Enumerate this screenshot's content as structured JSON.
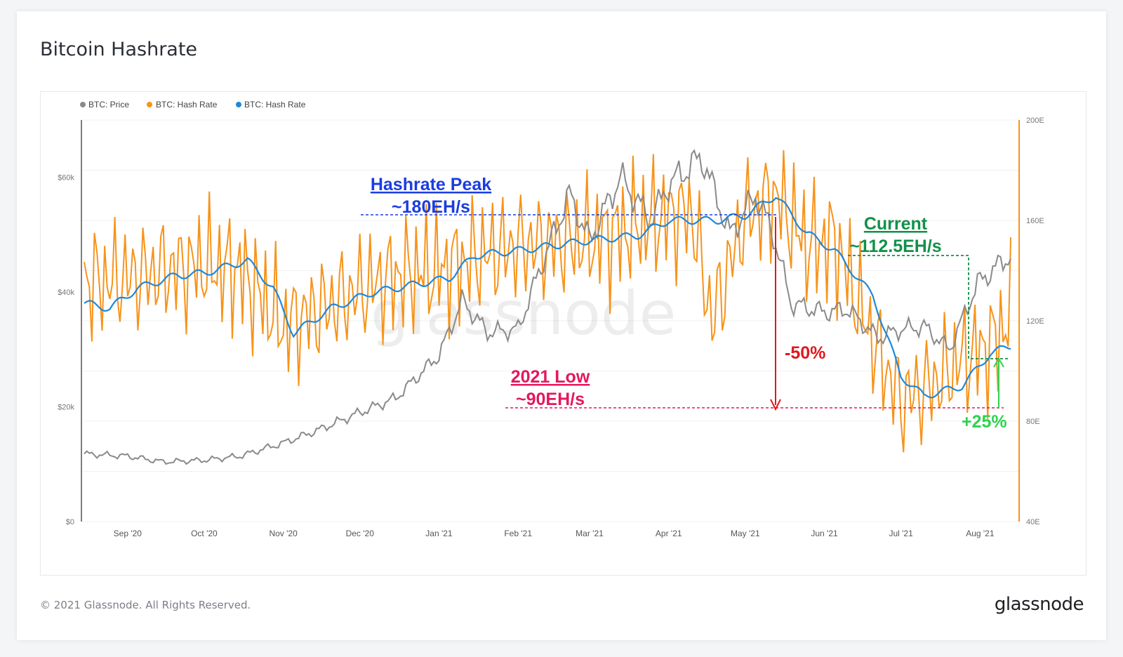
{
  "title": "Bitcoin Hashrate",
  "footer": "© 2021 Glassnode. All Rights Reserved.",
  "brand": "glassnode",
  "watermark": "glassnode",
  "colors": {
    "price": "#8a8a8a",
    "hashrate_raw": "#f7931a",
    "hashrate_ma": "#1f88d9",
    "peak": "#1a3de0",
    "low": "#e4185f",
    "current": "#119148",
    "drop": "#e0181e",
    "rise": "#2fd24f"
  },
  "chart_data": {
    "type": "line",
    "legend": [
      "BTC: Price",
      "BTC: Hash Rate",
      "BTC: Hash Rate"
    ],
    "legend_position": "top-left",
    "x_ticks": [
      "Sep '20",
      "Oct '20",
      "Nov '20",
      "Dec '20",
      "Jan '21",
      "Feb '21",
      "Mar '21",
      "Apr '21",
      "May '21",
      "Jun '21",
      "Jul '21",
      "Aug '21"
    ],
    "x_range": [
      "2020-08-15",
      "2021-08-13"
    ],
    "y_left": {
      "ticks": [
        "$0",
        "$20k",
        "$40k",
        "$60k"
      ],
      "range": [
        0,
        70000
      ]
    },
    "y_right": {
      "ticks": [
        "40E",
        "80E",
        "120E",
        "160E",
        "200E"
      ],
      "range": [
        40,
        200
      ]
    },
    "series": [
      {
        "name": "BTC: Price",
        "axis": "left",
        "x": [
          "2020-08-15",
          "2020-09-01",
          "2020-09-15",
          "2020-10-01",
          "2020-10-15",
          "2020-11-01",
          "2020-11-15",
          "2020-12-01",
          "2020-12-15",
          "2021-01-01",
          "2021-01-10",
          "2021-01-20",
          "2021-02-01",
          "2021-02-10",
          "2021-02-21",
          "2021-03-01",
          "2021-03-13",
          "2021-03-25",
          "2021-04-01",
          "2021-04-14",
          "2021-04-25",
          "2021-05-05",
          "2021-05-12",
          "2021-05-19",
          "2021-06-01",
          "2021-06-10",
          "2021-06-22",
          "2021-07-01",
          "2021-07-10",
          "2021-07-20",
          "2021-07-31",
          "2021-08-13"
        ],
        "values": [
          11800,
          11400,
          10400,
          10700,
          11400,
          13700,
          16000,
          19000,
          21500,
          29000,
          38500,
          33000,
          33500,
          44500,
          57000,
          49000,
          60000,
          52500,
          58800,
          63500,
          50000,
          57000,
          50000,
          38000,
          36500,
          37000,
          32000,
          33500,
          34000,
          30000,
          41500,
          46500
        ]
      },
      {
        "name": "BTC: Hash Rate",
        "axis": "right",
        "x": [
          "2020-08-15",
          "2020-09-01",
          "2020-09-15",
          "2020-10-01",
          "2020-10-15",
          "2020-11-01",
          "2020-11-15",
          "2020-12-01",
          "2020-12-15",
          "2021-01-01",
          "2021-01-15",
          "2021-02-01",
          "2021-02-15",
          "2021-03-01",
          "2021-03-15",
          "2021-04-01",
          "2021-04-10",
          "2021-04-18",
          "2021-05-01",
          "2021-05-13",
          "2021-05-25",
          "2021-06-05",
          "2021-06-20",
          "2021-07-01",
          "2021-07-15",
          "2021-07-25",
          "2021-08-05",
          "2021-08-13"
        ],
        "values": [
          135,
          137,
          140,
          142,
          140,
          118,
          124,
          132,
          138,
          140,
          145,
          150,
          151,
          152,
          156,
          162,
          163,
          120,
          162,
          170,
          150,
          152,
          112,
          88,
          96,
          105,
          110,
          122
        ]
      },
      {
        "name": "BTC: Hash Rate",
        "axis": "right",
        "x": [
          "2020-08-15",
          "2020-08-25",
          "2020-09-05",
          "2020-09-20",
          "2020-10-01",
          "2020-10-18",
          "2020-10-28",
          "2020-11-05",
          "2020-11-20",
          "2020-12-05",
          "2020-12-20",
          "2021-01-05",
          "2021-01-15",
          "2021-02-01",
          "2021-02-15",
          "2021-03-01",
          "2021-03-20",
          "2021-04-01",
          "2021-04-20",
          "2021-05-01",
          "2021-05-13",
          "2021-05-25",
          "2021-06-05",
          "2021-06-20",
          "2021-07-01",
          "2021-07-10",
          "2021-07-25",
          "2021-08-05",
          "2021-08-13"
        ],
        "values": [
          127,
          125,
          133,
          138,
          139,
          144,
          133,
          115,
          125,
          131,
          134,
          137,
          146,
          148,
          150,
          152,
          154,
          160,
          160,
          162,
          170,
          155,
          148,
          130,
          98,
          90,
          94,
          107,
          110
        ]
      }
    ],
    "annotations": [
      {
        "label": "Hashrate Peak",
        "value": "~180EH/s"
      },
      {
        "label": "2021 Low",
        "value": "~90EH/s"
      },
      {
        "label": "Current",
        "value": "~112.5EH/s"
      },
      {
        "label": "-50%"
      },
      {
        "label": "+25%"
      }
    ]
  }
}
